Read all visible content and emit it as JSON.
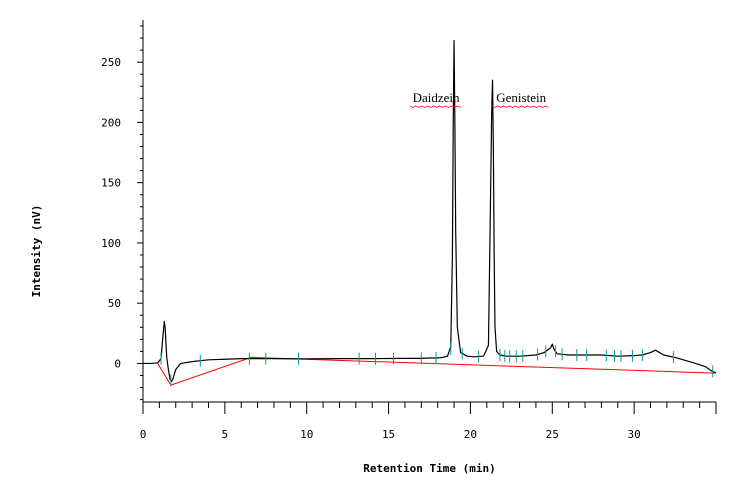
{
  "chart_data": {
    "type": "line",
    "title": "",
    "xlabel": "Retention Time (min)",
    "ylabel": "Intensity (nV)",
    "xlim": [
      0,
      35
    ],
    "ylim": [
      -32,
      285
    ],
    "x_ticks": [
      0,
      5,
      10,
      15,
      20,
      25,
      30
    ],
    "y_ticks": [
      0,
      50,
      100,
      150,
      200,
      250
    ],
    "grid": false,
    "colors": {
      "trace": "#000000",
      "baseline": "#ff0000",
      "peak_markers": "#00a0a0",
      "label_underline": "#ff0000"
    },
    "annotations": [
      {
        "text": "Daidzein",
        "x": 17.9,
        "y": 217
      },
      {
        "text": "Genistein",
        "x": 23.1,
        "y": 217
      }
    ],
    "series": [
      {
        "x": [
          0,
          0.5,
          0.9,
          1.1,
          1.2,
          1.3,
          1.35,
          1.45,
          1.55,
          1.65,
          1.75,
          1.85,
          2.0,
          2.3,
          3.0,
          4.0,
          5.0,
          6.0,
          7.0,
          8.0,
          10.0,
          12.0,
          14.0,
          16.0,
          17.0,
          17.5,
          18.0,
          18.3,
          18.6,
          18.8,
          18.9,
          18.95,
          19.0,
          19.05,
          19.1,
          19.2,
          19.4,
          19.8,
          20.2,
          20.8,
          21.1,
          21.2,
          21.3,
          21.35,
          21.4,
          21.45,
          21.5,
          21.6,
          21.8,
          22.2,
          23.0,
          24.0,
          24.5,
          24.9,
          25.0,
          25.1,
          25.3,
          26.0,
          27.0,
          28.0,
          29.0,
          30.0,
          30.5,
          31.0,
          31.3,
          31.8,
          32.5,
          33.0,
          33.5,
          34.0,
          34.4,
          34.7,
          35.0
        ],
        "y": [
          0,
          0,
          0.5,
          4,
          20,
          35,
          30,
          5,
          -5,
          -13,
          -15,
          -12,
          -5,
          0,
          1.5,
          3,
          3.5,
          4,
          4,
          4,
          3.8,
          4,
          4,
          4.2,
          4.2,
          4.5,
          4.5,
          5,
          6,
          14,
          90,
          200,
          268,
          200,
          110,
          30,
          9,
          6,
          5.5,
          6,
          15,
          110,
          210,
          235,
          180,
          90,
          30,
          10,
          7,
          6,
          6,
          7,
          9,
          13,
          16,
          12,
          8,
          7,
          7,
          7,
          6,
          6.5,
          7,
          9,
          11,
          7,
          5,
          3,
          1,
          -1,
          -3,
          -6,
          -8
        ]
      },
      {
        "name": "",
        "x": [
          0.9,
          1.7,
          6.6,
          34.9
        ],
        "y": [
          0,
          -18,
          5,
          -8
        ]
      }
    ],
    "peak_markers_x": [
      1.1,
      1.7,
      3.5,
      6.5,
      7.5,
      9.5,
      13.2,
      14.2,
      15.3,
      17.0,
      17.9,
      18.8,
      19.5,
      20.5,
      21.8,
      22.1,
      22.4,
      22.8,
      23.2,
      24.1,
      24.6,
      25.2,
      25.6,
      26.5,
      27.1,
      28.3,
      28.8,
      29.2,
      29.9,
      30.5,
      32.4,
      34.8
    ]
  }
}
